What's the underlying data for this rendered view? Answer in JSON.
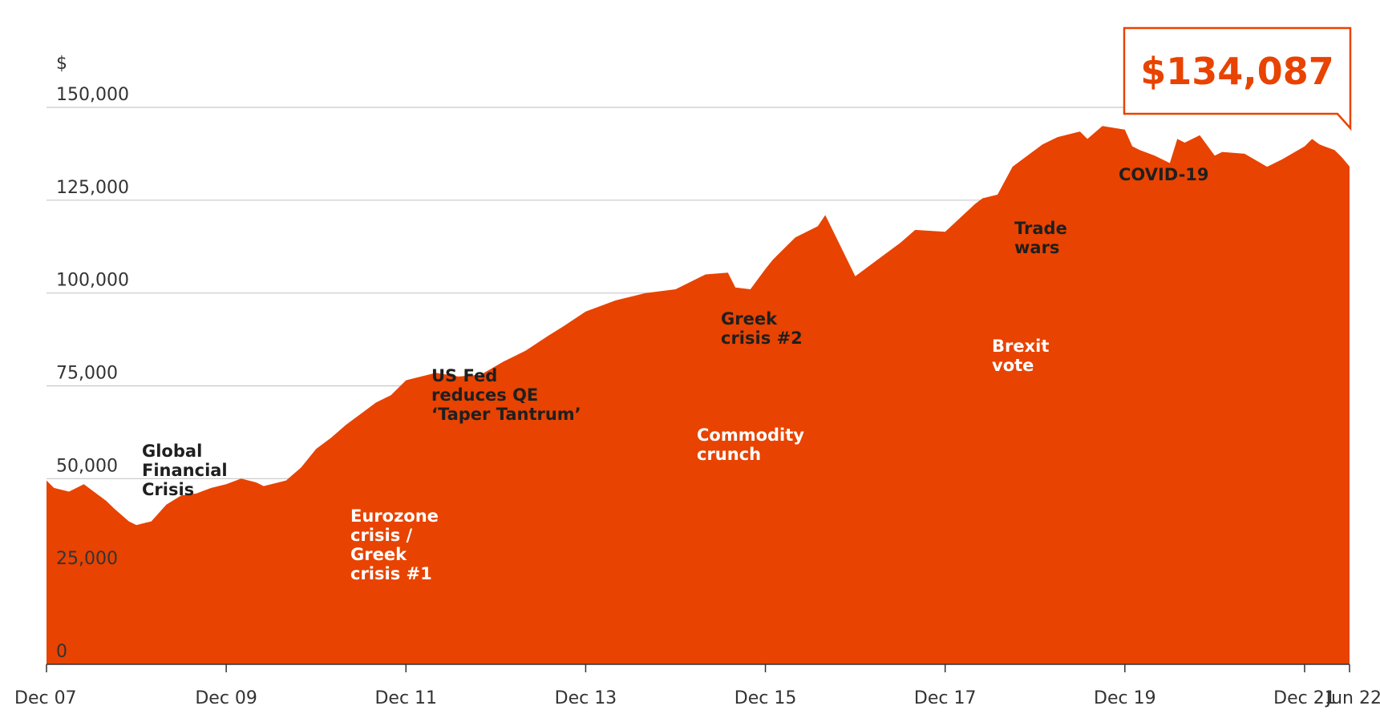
{
  "chart_data": {
    "type": "area",
    "title": "",
    "xlabel": "",
    "ylabel": "$",
    "y_tick_labels": [
      "0",
      "25,000",
      "50,000",
      "75,000",
      "100,000",
      "125,000",
      "150,000"
    ],
    "y_ticks": [
      0,
      25000,
      50000,
      75000,
      100000,
      125000,
      150000
    ],
    "ylim": [
      0,
      150000
    ],
    "x_tick_labels": [
      "Dec 07",
      "Dec 09",
      "Dec 11",
      "Dec 13",
      "Dec 15",
      "Dec 17",
      "Dec 19",
      "Dec 21",
      "Jun 22"
    ],
    "x_tick_positions": [
      2007.917,
      2009.917,
      2011.917,
      2013.917,
      2015.917,
      2017.917,
      2019.917,
      2021.917,
      2022.417
    ],
    "xlim": [
      2007.917,
      2022.417
    ],
    "grid": true,
    "color": "#e84300",
    "series": [
      {
        "x": [
          2007.917,
          2008.0,
          2008.167,
          2008.333,
          2008.5,
          2008.583,
          2008.667,
          2008.833,
          2008.917,
          2009.0,
          2009.083,
          2009.25,
          2009.417,
          2009.583,
          2009.75,
          2009.917,
          2010.083,
          2010.25,
          2010.333,
          2010.583,
          2010.75,
          2010.917,
          2011.083,
          2011.25,
          2011.417,
          2011.583,
          2011.75,
          2011.917,
          2012.0,
          2012.25,
          2012.5,
          2012.75,
          2013.0,
          2013.25,
          2013.5,
          2013.667,
          2013.917,
          2014.25,
          2014.583,
          2014.917,
          2015.25,
          2015.5,
          2015.583,
          2015.75,
          2015.917,
          2016.0,
          2016.167,
          2016.25,
          2016.5,
          2016.583,
          2016.917,
          2017.25,
          2017.417,
          2017.583,
          2017.917,
          2018.25,
          2018.333,
          2018.5,
          2018.667,
          2019.0,
          2019.167,
          2019.417,
          2019.5,
          2019.667,
          2019.917,
          2020.0,
          2020.083,
          2020.25,
          2020.417,
          2020.5,
          2020.583,
          2020.75,
          2020.917,
          2021.0,
          2021.25,
          2021.5,
          2021.667,
          2021.917,
          2022.0,
          2022.083,
          2022.25,
          2022.333,
          2022.417
        ],
        "values": [
          49500,
          47500,
          46500,
          48500,
          45500,
          44000,
          42000,
          38500,
          37500,
          38000,
          38500,
          43000,
          45500,
          46000,
          47500,
          48500,
          50000,
          49000,
          48000,
          49500,
          53000,
          58000,
          61000,
          64500,
          67500,
          70500,
          72500,
          76500,
          77000,
          78500,
          77500,
          78000,
          81500,
          84500,
          88500,
          91000,
          95000,
          98000,
          100000,
          101000,
          105000,
          105500,
          101500,
          101000,
          106500,
          109000,
          113000,
          115000,
          118000,
          121000,
          104500,
          110500,
          113500,
          117000,
          116500,
          124000,
          125500,
          126500,
          134000,
          140000,
          142000,
          143500,
          141500,
          145000,
          144000,
          139500,
          138500,
          137000,
          135000,
          141500,
          140500,
          142500,
          137000,
          138000,
          137500,
          134000,
          136000,
          139500,
          141500,
          140000,
          138500,
          136500,
          134087
        ]
      }
    ],
    "annotations": [
      {
        "text": [
          "Global",
          "Financial",
          "Crisis"
        ],
        "style": "dark"
      },
      {
        "text": [
          "Eurozone",
          "crisis /",
          "Greek",
          "crisis #1"
        ],
        "style": "light"
      },
      {
        "text": [
          "US Fed",
          "reduces QE",
          "‘Taper Tantrum’"
        ],
        "style": "dark"
      },
      {
        "text": [
          "Commodity",
          "crunch"
        ],
        "style": "light"
      },
      {
        "text": [
          "Greek",
          "crisis #2"
        ],
        "style": "dark"
      },
      {
        "text": [
          "Brexit",
          "vote"
        ],
        "style": "light"
      },
      {
        "text": [
          "Trade",
          "wars"
        ],
        "style": "dark"
      },
      {
        "text": [
          "COVID-19"
        ],
        "style": "dark"
      }
    ],
    "callout": {
      "text": "$134,087",
      "color": "#e84300"
    }
  }
}
